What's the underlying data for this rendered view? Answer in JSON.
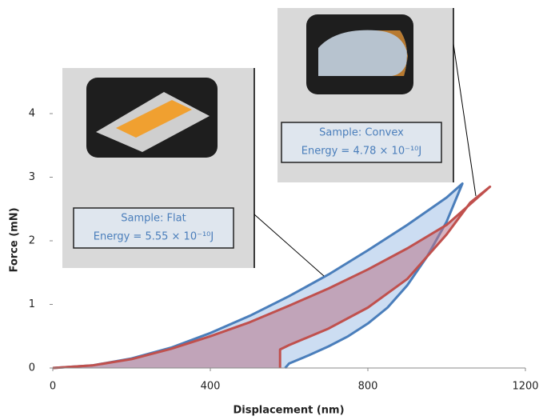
{
  "chart_data": {
    "type": "line",
    "x_label": "Displacement (nm)",
    "y_label": "Force (mN)",
    "xlim": [
      0,
      1200
    ],
    "xticks": [
      0,
      400,
      800,
      1200
    ],
    "ylim": [
      0,
      4
    ],
    "yticks": [
      0,
      1,
      2,
      3,
      4
    ],
    "series": [
      {
        "color": "#4a7ebb",
        "fill": "#c6d9f1",
        "x": [
          0,
          100,
          200,
          300,
          400,
          500,
          600,
          700,
          800,
          900,
          1000,
          1040,
          1000,
          950,
          900,
          850,
          800,
          750,
          700,
          650,
          600,
          590
        ],
        "values": [
          0,
          0.04,
          0.15,
          0.32,
          0.55,
          0.82,
          1.13,
          1.47,
          1.85,
          2.25,
          2.68,
          2.9,
          2.3,
          1.75,
          1.3,
          0.95,
          0.7,
          0.5,
          0.34,
          0.2,
          0.07,
          0
        ]
      },
      {
        "color": "#c0504d",
        "fill": "#b8748a",
        "x": [
          0,
          100,
          200,
          300,
          400,
          500,
          600,
          700,
          800,
          900,
          1000,
          1110,
          1060,
          1000,
          900,
          800,
          700,
          600,
          577,
          577
        ],
        "values": [
          0,
          0.04,
          0.14,
          0.3,
          0.5,
          0.72,
          0.98,
          1.25,
          1.55,
          1.88,
          2.25,
          2.85,
          2.6,
          2.1,
          1.4,
          0.95,
          0.62,
          0.36,
          0.29,
          0
        ]
      }
    ],
    "annotations": [
      {
        "sample": "Sample:  Flat",
        "energy": "Energy = 5.55 × 10⁻¹⁰J"
      },
      {
        "sample": "Sample:  Convex",
        "energy": "Energy = 4.78 × 10⁻¹⁰J"
      }
    ]
  }
}
